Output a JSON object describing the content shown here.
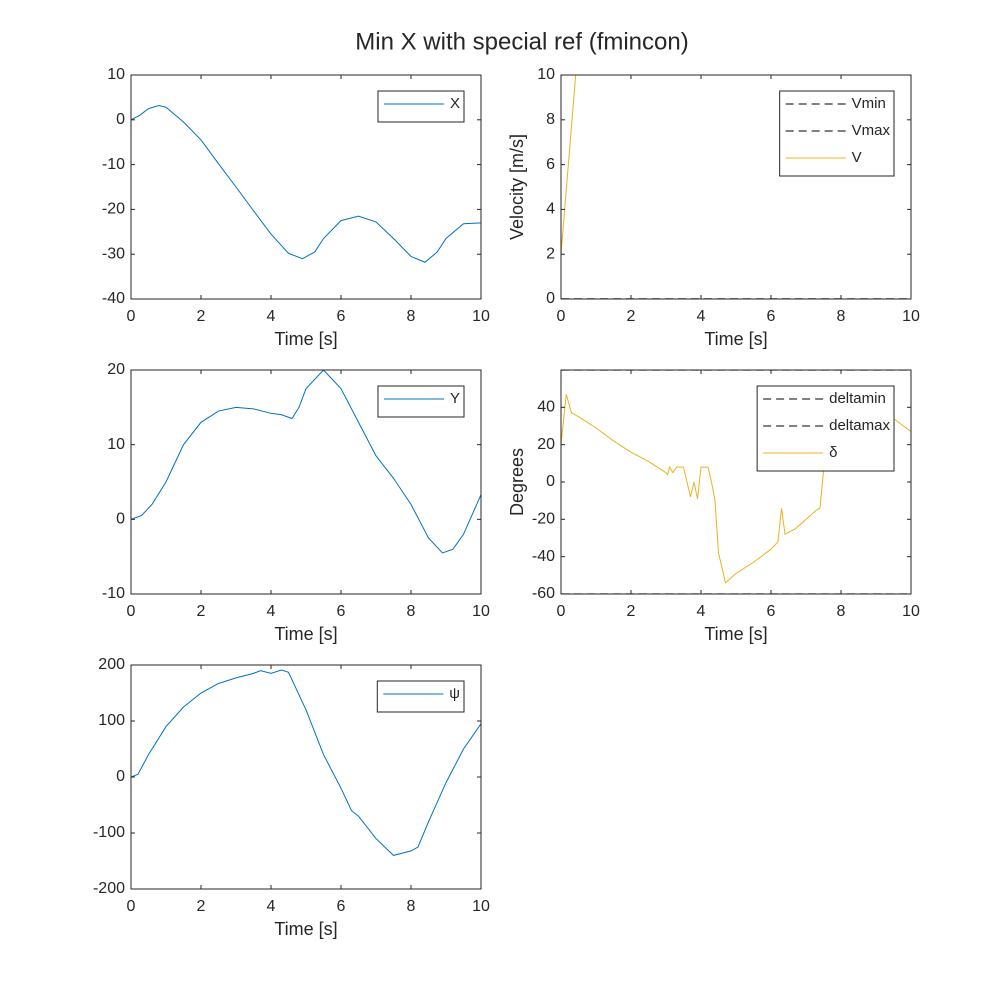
{
  "title": "Min X with special ref (fmincon)",
  "chart_data": [
    {
      "type": "line",
      "xlabel": "Time [s]",
      "xlim": [
        0,
        10
      ],
      "xticks": [
        0,
        2,
        4,
        6,
        8,
        10
      ],
      "ylim": [
        -40,
        10
      ],
      "yticks": [
        -40,
        -30,
        -20,
        -10,
        0,
        10
      ],
      "legend": "northeast",
      "series": [
        {
          "name": "X",
          "color": "#0072bd",
          "linestyle": "-",
          "x": [
            0,
            0.25,
            0.5,
            0.8,
            1.0,
            1.5,
            2,
            2.5,
            3,
            3.5,
            4,
            4.5,
            4.9,
            5.25,
            5.5,
            6,
            6.5,
            7,
            7.5,
            8,
            8.4,
            8.75,
            9,
            9.5,
            10
          ],
          "values": [
            0,
            1,
            2.5,
            3.2,
            2.8,
            -0.5,
            -4.5,
            -9.8,
            -15,
            -20.3,
            -25.5,
            -29.8,
            -31,
            -29.5,
            -26.5,
            -22.5,
            -21.5,
            -22.8,
            -26.5,
            -30.5,
            -31.8,
            -29.5,
            -26.5,
            -23.2,
            -23
          ]
        }
      ]
    },
    {
      "type": "line",
      "xlabel": "Time [s]",
      "ylabel": "Velocity [m/s]",
      "xlim": [
        0,
        10
      ],
      "xticks": [
        0,
        2,
        4,
        6,
        8,
        10
      ],
      "ylim": [
        0,
        10
      ],
      "yticks": [
        0,
        2,
        4,
        6,
        8,
        10
      ],
      "legend": "northeast",
      "series": [
        {
          "name": "Vmin",
          "color": "#000000",
          "linestyle": "--",
          "x": [
            0,
            10
          ],
          "values": [
            0,
            0
          ]
        },
        {
          "name": "Vmax",
          "color": "#000000",
          "linestyle": "--",
          "x": [
            0,
            10
          ],
          "values": [
            0,
            0
          ]
        },
        {
          "name": "V",
          "color": "#edb120",
          "linestyle": "-",
          "x": [
            0,
            0.42,
            1,
            10
          ],
          "values": [
            2,
            10,
            10,
            10
          ]
        }
      ]
    },
    {
      "type": "line",
      "xlabel": "Time [s]",
      "xlim": [
        0,
        10
      ],
      "xticks": [
        0,
        2,
        4,
        6,
        8,
        10
      ],
      "ylim": [
        -10,
        20
      ],
      "yticks": [
        -10,
        0,
        10,
        20
      ],
      "legend": "northeast",
      "series": [
        {
          "name": "Y",
          "color": "#0072bd",
          "linestyle": "-",
          "x": [
            0,
            0.3,
            0.6,
            1,
            1.5,
            2,
            2.5,
            3,
            3.5,
            4,
            4.3,
            4.6,
            4.8,
            5,
            5.5,
            6,
            6.5,
            7,
            7.5,
            8,
            8.5,
            8.9,
            9.2,
            9.5,
            10
          ],
          "values": [
            0,
            0.5,
            2,
            5,
            10,
            13,
            14.5,
            15,
            14.8,
            14.2,
            14,
            13.5,
            15,
            17.5,
            20,
            17.5,
            13,
            8.5,
            5.5,
            2,
            -2.5,
            -4.5,
            -4,
            -2,
            3.3
          ]
        }
      ]
    },
    {
      "type": "line",
      "xlabel": "Time [s]",
      "ylabel": "Degrees",
      "xlim": [
        0,
        10
      ],
      "xticks": [
        0,
        2,
        4,
        6,
        8,
        10
      ],
      "ylim": [
        -60,
        60
      ],
      "yticks": [
        -60,
        -40,
        -20,
        0,
        20,
        40
      ],
      "legend": "northeast",
      "series": [
        {
          "name": "deltamin",
          "color": "#000000",
          "linestyle": "--",
          "x": [
            0,
            10
          ],
          "values": [
            -60,
            -60
          ]
        },
        {
          "name": "deltamax",
          "color": "#000000",
          "linestyle": "--",
          "x": [
            0,
            10
          ],
          "values": [
            60,
            60
          ]
        },
        {
          "name": "δ",
          "color": "#edb120",
          "linestyle": "-",
          "x": [
            0,
            0.15,
            0.3,
            0.5,
            1,
            1.5,
            2,
            2.5,
            3,
            3.05,
            3.1,
            3.2,
            3.3,
            3.5,
            3.7,
            3.8,
            3.9,
            4.0,
            4.2,
            4.3,
            4.4,
            4.5,
            4.7,
            5,
            5.5,
            6,
            6.2,
            6.3,
            6.4,
            6.7,
            7,
            7.3,
            7.4,
            7.5,
            7.7,
            8,
            8.15,
            8.3,
            9.5,
            10
          ],
          "values": [
            20,
            47,
            37,
            35,
            29,
            22,
            16,
            11,
            5,
            4,
            8,
            5,
            8,
            8,
            -8,
            0,
            -9,
            8,
            8,
            0,
            -10,
            -38,
            -54,
            -49,
            -43,
            -36,
            -32,
            -14,
            -28,
            -25,
            -20,
            -15,
            -14,
            6,
            7,
            7,
            8,
            40,
            34,
            27
          ]
        }
      ]
    },
    {
      "type": "line",
      "xlabel": "Time [s]",
      "xlim": [
        0,
        10
      ],
      "xticks": [
        0,
        2,
        4,
        6,
        8,
        10
      ],
      "ylim": [
        -200,
        200
      ],
      "yticks": [
        -200,
        -100,
        0,
        100,
        200
      ],
      "legend": "northeast",
      "series": [
        {
          "name": "ψ",
          "color": "#0072bd",
          "linestyle": "-",
          "x": [
            0,
            0.2,
            0.5,
            1,
            1.5,
            2,
            2.5,
            3,
            3.5,
            3.7,
            4,
            4.3,
            4.5,
            5,
            5.5,
            6,
            6.3,
            6.5,
            7,
            7.5,
            8,
            8.2,
            8.5,
            9,
            9.5,
            10
          ],
          "values": [
            0,
            5,
            40,
            90,
            125,
            150,
            167,
            177,
            185,
            190,
            185,
            191,
            187,
            120,
            40,
            -20,
            -60,
            -70,
            -110,
            -140,
            -132,
            -125,
            -80,
            -10,
            50,
            95
          ]
        }
      ]
    }
  ]
}
